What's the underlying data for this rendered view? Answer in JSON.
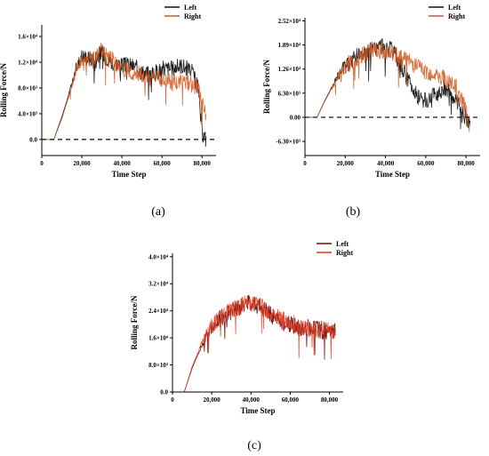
{
  "chart_data": [
    {
      "type": "line",
      "panel": "(a)",
      "xlabel": "Time Step",
      "ylabel": "Rolling Force/N",
      "xlim": [
        0,
        87000
      ],
      "ylim": [
        -2500,
        17800
      ],
      "x_ticks": [
        0,
        20000,
        40000,
        60000,
        80000
      ],
      "x_tick_labels": [
        "0",
        "20,000",
        "40,000",
        "60,000",
        "80,000"
      ],
      "y_ticks": [
        0,
        4000,
        8000,
        12000,
        16000
      ],
      "y_tick_labels": [
        "0.0",
        "4.0×10³",
        "8.0×10³",
        "1.2×10⁴",
        "1.6×10⁴"
      ],
      "zero_line": true,
      "legend_position": "top-right",
      "series": [
        {
          "name": "Left",
          "color": "#111111",
          "x": [
            0,
            6000,
            10000,
            14000,
            17000,
            20000,
            25000,
            30000,
            35000,
            40000,
            45000,
            50000,
            55000,
            60000,
            65000,
            70000,
            75000,
            78000,
            80000,
            82000
          ],
          "y": [
            0,
            0,
            3500,
            7500,
            11000,
            13000,
            12500,
            13500,
            12000,
            11500,
            11500,
            10500,
            10000,
            11000,
            11000,
            11500,
            10500,
            8000,
            1000,
            0
          ]
        },
        {
          "name": "Right",
          "color": "#d2571e",
          "x": [
            0,
            6000,
            10000,
            14000,
            17000,
            20000,
            25000,
            30000,
            35000,
            40000,
            45000,
            50000,
            55000,
            60000,
            65000,
            70000,
            75000,
            78000,
            80000,
            82000
          ],
          "y": [
            0,
            0,
            3200,
            7200,
            10500,
            12500,
            12000,
            14000,
            12500,
            11000,
            10500,
            10000,
            9500,
            9500,
            9000,
            9000,
            8500,
            8000,
            6000,
            4000
          ]
        }
      ]
    },
    {
      "type": "line",
      "panel": "(b)",
      "xlabel": "Time Step",
      "ylabel": "Rolling Force/N",
      "xlim": [
        0,
        87000
      ],
      "ylim": [
        -10000,
        26000
      ],
      "x_ticks": [
        0,
        20000,
        40000,
        60000,
        80000
      ],
      "x_tick_labels": [
        "0",
        "20,000",
        "40,000",
        "60,000",
        "80,000"
      ],
      "y_ticks": [
        -6300,
        0,
        6300,
        12600,
        18900,
        25200
      ],
      "y_tick_labels": [
        "-6.30×10³",
        "0.00",
        "6.30×10³",
        "1.26×10⁴",
        "1.89×10⁴",
        "2.52×10⁴"
      ],
      "zero_line": true,
      "legend_position": "top-right",
      "series": [
        {
          "name": "Left",
          "color": "#111111",
          "x": [
            0,
            6000,
            10000,
            15000,
            20000,
            25000,
            30000,
            35000,
            40000,
            45000,
            50000,
            55000,
            60000,
            65000,
            70000,
            75000,
            80000,
            82000
          ],
          "y": [
            0,
            0,
            4500,
            9500,
            13500,
            15500,
            17000,
            18000,
            19000,
            16000,
            11000,
            6000,
            4000,
            6000,
            8000,
            4000,
            0,
            -1500
          ]
        },
        {
          "name": "Right",
          "color": "#d2571e",
          "x": [
            0,
            6000,
            10000,
            15000,
            20000,
            25000,
            30000,
            35000,
            40000,
            45000,
            50000,
            55000,
            60000,
            65000,
            70000,
            75000,
            80000,
            82000
          ],
          "y": [
            0,
            0,
            4300,
            9200,
            13200,
            15200,
            16500,
            17500,
            17500,
            16500,
            15000,
            13500,
            12000,
            11000,
            10000,
            8000,
            2000,
            -3000
          ]
        }
      ]
    },
    {
      "type": "line",
      "panel": "(c)",
      "xlabel": "Time Step",
      "ylabel": "Rolling Force/N",
      "xlim": [
        0,
        87000
      ],
      "ylim": [
        0,
        41000
      ],
      "x_ticks": [
        0,
        20000,
        40000,
        60000,
        80000
      ],
      "x_tick_labels": [
        "0",
        "20,000",
        "40,000",
        "60,000",
        "80,000"
      ],
      "y_ticks": [
        0,
        8000,
        16000,
        24000,
        32000,
        40000
      ],
      "y_tick_labels": [
        "0.0",
        "8.0×10³",
        "1.6×10⁴",
        "2.4×10⁴",
        "3.2×10⁴",
        "4.0×10⁴"
      ],
      "zero_line": false,
      "legend_position": "top-right",
      "series": [
        {
          "name": "Left",
          "color": "#6b0f0f",
          "x": [
            0,
            6000,
            10000,
            15000,
            20000,
            25000,
            30000,
            35000,
            40000,
            45000,
            50000,
            55000,
            60000,
            65000,
            70000,
            75000,
            80000,
            83000
          ],
          "y": [
            0,
            0,
            7000,
            14000,
            19000,
            22000,
            24000,
            25000,
            27000,
            25000,
            23000,
            21000,
            20000,
            19000,
            19000,
            18500,
            18000,
            18000
          ]
        },
        {
          "name": "Right",
          "color": "#e63a1a",
          "x": [
            0,
            6000,
            10000,
            15000,
            20000,
            25000,
            30000,
            35000,
            40000,
            45000,
            50000,
            55000,
            60000,
            65000,
            70000,
            75000,
            80000,
            83000
          ],
          "y": [
            0,
            0,
            7500,
            14500,
            19500,
            22500,
            24500,
            25500,
            26500,
            25500,
            23500,
            21500,
            20500,
            19500,
            19000,
            18500,
            18500,
            18000
          ]
        }
      ]
    }
  ]
}
